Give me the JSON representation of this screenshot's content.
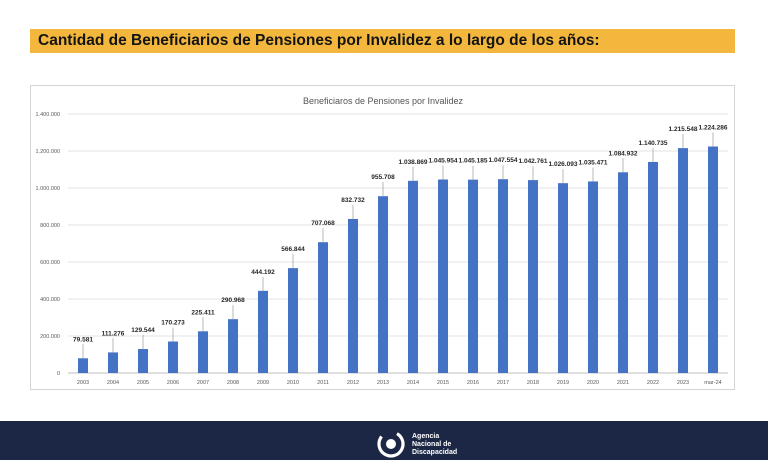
{
  "header": {
    "title": "Cantidad de Beneficiarios de Pensiones por Invalidez a lo largo de los años:"
  },
  "colors": {
    "banner": "#f2b73c",
    "bar": "#4472c4",
    "footer": "#1c2745"
  },
  "footer": {
    "logo_line1": "Agencia",
    "logo_line2": "Nacional de",
    "logo_line3": "Discapacidad"
  },
  "chart_data": {
    "type": "bar",
    "title": "Beneficiaros de Pensiones por Invalidez",
    "xlabel": "",
    "ylabel": "",
    "ylim": [
      0,
      1400000
    ],
    "yticks": [
      0,
      200000,
      400000,
      600000,
      800000,
      1000000,
      1200000,
      1400000
    ],
    "ytick_labels": [
      "0",
      "200.000",
      "400.000",
      "600.000",
      "800.000",
      "1.000.000",
      "1.200.000",
      "1.400.000"
    ],
    "grid": true,
    "legend": "none",
    "categories": [
      "2003",
      "2004",
      "2005",
      "2006",
      "2007",
      "2008",
      "2009",
      "2010",
      "2011",
      "2012",
      "2013",
      "2014",
      "2015",
      "2016",
      "2017",
      "2018",
      "2019",
      "2020",
      "2021",
      "2022",
      "2023",
      "mar-24"
    ],
    "values": [
      79581,
      111276,
      129544,
      170273,
      225411,
      290968,
      444192,
      566844,
      707068,
      832732,
      955708,
      1038869,
      1045954,
      1045185,
      1047554,
      1042761,
      1026093,
      1035471,
      1084932,
      1140735,
      1215548,
      1224286
    ],
    "data_labels": [
      "79.581",
      "111.276",
      "129.544",
      "170.273",
      "225.411",
      "290.968",
      "444.192",
      "566.844",
      "707.068",
      "832.732",
      "955.708",
      "1.038.869",
      "1.045.954",
      "1.045.185",
      "1.047.554",
      "1.042.761",
      "1.026.093",
      "1.035.471",
      "1.084.932",
      "1.140.735",
      "1.215.548",
      "1.224.286"
    ]
  }
}
